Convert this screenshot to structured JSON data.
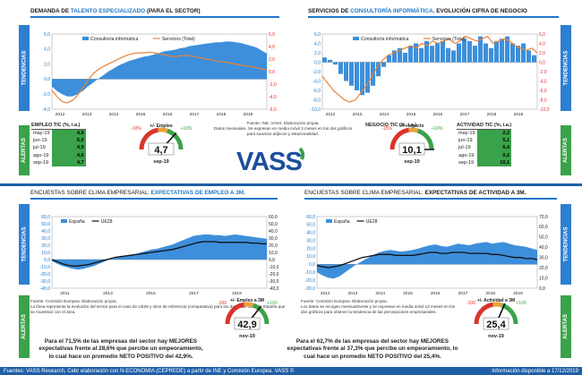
{
  "panels": {
    "tl": {
      "title_a": "DEMANDA DE ",
      "title_hl": "TALENTO ESPECIALIZADO",
      "title_b": " (PARA EL SECTOR)"
    },
    "tr": {
      "title_a": "SERVICIOS DE ",
      "title_hl": "CONSULTORÍA INFORMÁTICA",
      "title_b": ". EVOLUCIÓN CIFRA DE NEGOCIO"
    },
    "bl": {
      "title_a": "ENCUESTAS SOBRE CLIMA EMPRESARIAL: ",
      "title_hl": "EXPECTATIVAS DE EMPLEO A 3M."
    },
    "br": {
      "title_a": "ENCUESTAS SOBRE CLIMA EMPRESARIAL: ",
      "title_hl": "EXPECTATIVAS DE ACTIVIDAD A 3M."
    }
  },
  "tabs": {
    "tendencias": "TENDENCIAS",
    "alertas": "ALERTAS"
  },
  "notes": {
    "top_center": "Fuente: INE, VASS. Elaboración propia.\nDatos mensuales. Se expresan en media móvil 3 meses  en los dos gráficos para suavizar atípicos y estacionalidad.",
    "bl": "Fuente: Comisión Europea. Elaboración propia.\nLa línea representa la evolución del sector para el caso de UE28 y sirve de referencia (comparativa) para los datos del caso de España que se muestran con el área.",
    "br": "Fuente: Comisión Europea. Elaboración propia.\nLos datos se recogen mensualmente y se expresan en media móvil 12 meses  en los dos gráficos para obtener la tendencia de las percepciones empresariales."
  },
  "logo": {
    "text": "VASS"
  },
  "alerts": {
    "empleo": {
      "header": "EMPLEO TIC (%, i.a.)",
      "rows": [
        {
          "label": "may-19",
          "value": "4,9"
        },
        {
          "label": "jun-19",
          "value": "5,0"
        },
        {
          "label": "jul-19",
          "value": "4,9"
        },
        {
          "label": "ago-19",
          "value": "4,6"
        },
        {
          "label": "sep-19",
          "value": "4,7"
        }
      ],
      "gauge": {
        "min_label": "-10%",
        "max_label": "+10%",
        "caption": "+/- Empleo",
        "value": "4,7",
        "period": "sep-19",
        "fraction": 0.735
      }
    },
    "negocio": {
      "header": "NEGOCIO TIC (%, i.a.)",
      "gauge": {
        "min_label": "-15%",
        "max_label": "+10%",
        "caption": "+/- negocio",
        "value": "10,1",
        "period": "sep-19",
        "fraction": 1.0
      }
    },
    "actividad": {
      "header": "ACTIVIDAD TIC (%, i.a.)",
      "rows": [
        {
          "label": "may-19",
          "value": "2,2"
        },
        {
          "label": "jun-19",
          "value": "5,1"
        },
        {
          "label": "jul-19",
          "value": "6,4"
        },
        {
          "label": "ago-19",
          "value": "0,2"
        },
        {
          "label": "sep-19",
          "value": "10,1"
        }
      ]
    },
    "exp_empleo": {
      "gauge": {
        "min_label": "-100",
        "max_label": "+100",
        "caption": "+/- Empleo a 3M",
        "value": "42,9",
        "period": "nov-19",
        "fraction": 0.71
      },
      "para_a": "Para el 71,5% de las empresas del sector hay MEJORES expectativas frente al 28,6% que percibe un empeoramiento, lo cual hace un promedio NETO POSITIVO del 42,9%."
    },
    "exp_actividad": {
      "gauge": {
        "min_label": "-100",
        "max_label": "+100",
        "caption": "+/- Actividad a 3M",
        "value": "25,4",
        "period": "nov-19",
        "fraction": 0.63
      },
      "para_a": "Para el 62,7% de las empresas del sector hay MEJORES expectativas frente al 37,3% que percibe un empeoramiento, lo cual hace un promedio NETO POSITIVO del 25,4%."
    }
  },
  "footer": {
    "left": "Fuentes: VASS Research, Cebr elaboración con N-ECONOMIA (CEPREDE) a partir de INE y Comisión Europea. VASS ©",
    "right": "Información disponible a 17/12/2019"
  },
  "colors": {
    "accent": "#1f78c8",
    "area": "#3d8fdb",
    "orange": "#e8833a",
    "green": "#3aa24a",
    "red": "#d9342b"
  },
  "chart_data": [
    {
      "type": "area",
      "legend": [
        "Consultoría informática",
        "Servicios (Total)"
      ],
      "x_ticks": [
        "2012",
        "2013",
        "2014",
        "2015",
        "2016",
        "2017",
        "2018",
        "2019"
      ],
      "ylim_left": [
        -4,
        6
      ],
      "yticks_left": [
        "-4,0",
        "-2,0",
        "0,0",
        "2,0",
        "4,0",
        "6,0"
      ],
      "ylim_right": [
        -6,
        6
      ],
      "yticks_right": [
        "-6,0",
        "-4,0",
        "-2,0",
        "0,0",
        "2,0",
        "4,0",
        "6,0"
      ],
      "series": [
        {
          "name": "Consultoría informática",
          "axis": "left",
          "values": [
            -1.0,
            -1.6,
            -2.0,
            -2.3,
            -2.3,
            -2.0,
            -1.6,
            -1.0,
            -0.5,
            0.0,
            0.5,
            1.0,
            1.4,
            1.8,
            2.1,
            2.4,
            2.6,
            2.8,
            3.0,
            3.1,
            3.3,
            3.5,
            3.7,
            3.8,
            3.9,
            4.1,
            4.2,
            4.4,
            4.5,
            4.6,
            4.7,
            4.8,
            4.9,
            4.9,
            5.0,
            5.0,
            4.9,
            4.8,
            4.6,
            4.4,
            4.2,
            3.8,
            3.4
          ]
        },
        {
          "name": "Servicios (Total)",
          "axis": "right",
          "values": [
            -3.0,
            -4.0,
            -4.8,
            -5.0,
            -4.6,
            -3.8,
            -2.6,
            -1.4,
            -0.4,
            0.3,
            0.8,
            1.2,
            1.6,
            2.0,
            2.4,
            2.7,
            2.9,
            3.0,
            3.0,
            3.1,
            3.0,
            2.8,
            2.7,
            2.5,
            2.4,
            2.5,
            2.6,
            2.5,
            2.4,
            2.2,
            2.0,
            1.9,
            1.7,
            1.6,
            1.5,
            1.3,
            1.2,
            1.0,
            0.9,
            0.8,
            0.6,
            0.4,
            0.3
          ]
        }
      ]
    },
    {
      "type": "bar",
      "legend": [
        "Consultoría informática",
        "Servicios (Total)"
      ],
      "x_ticks": [
        "2012",
        "2013",
        "2014",
        "2015",
        "2016",
        "2017",
        "2018",
        "2019"
      ],
      "ylim_left": [
        -10,
        6
      ],
      "yticks_left": [
        "-10,0",
        "-8,0",
        "-6,0",
        "-4,0",
        "-2,0",
        "0,0",
        "2,0",
        "4,0",
        "6,0"
      ],
      "ylim_right": [
        -10,
        6
      ],
      "yticks_right": [
        "-10,0",
        "-8,0",
        "-6,0",
        "-4,0",
        "-2,0",
        "0,0",
        "2,0",
        "4,0",
        "6,0"
      ],
      "series": [
        {
          "name": "Consultoría informática",
          "axis": "left",
          "values": [
            1.0,
            0.5,
            -0.5,
            -2.5,
            -4.0,
            -5.0,
            -6.0,
            -7.0,
            -6.5,
            -5.0,
            -3.0,
            -1.0,
            1.5,
            2.5,
            3.0,
            2.0,
            3.5,
            4.0,
            3.0,
            4.5,
            3.5,
            4.0,
            4.5,
            3.0,
            2.5,
            4.0,
            5.0,
            4.5,
            3.5,
            5.5,
            4.0,
            3.0,
            4.5,
            5.0,
            5.5,
            4.0,
            3.5,
            4.0,
            2.5,
            1.5
          ]
        },
        {
          "name": "Servicios (Total)",
          "axis": "right",
          "values": [
            -3.0,
            -4.5,
            -6.0,
            -7.0,
            -8.0,
            -8.5,
            -8.0,
            -6.5,
            -5.0,
            -3.0,
            -1.0,
            0.5,
            1.5,
            2.0,
            2.5,
            3.0,
            3.5,
            3.0,
            4.0,
            3.5,
            4.5,
            4.0,
            4.5,
            5.0,
            4.0,
            4.5,
            5.5,
            5.0,
            4.5,
            5.0,
            5.5,
            4.0,
            4.5,
            5.0,
            4.5,
            3.5,
            3.0,
            2.5,
            3.0,
            2.0
          ]
        }
      ]
    },
    {
      "type": "area",
      "legend": [
        "España",
        "UE28"
      ],
      "x_ticks": [
        "2011",
        "2013",
        "2015",
        "2017",
        "2019"
      ],
      "ylim_left": [
        -40,
        60
      ],
      "yticks_left": [
        "-40,0",
        "-30,0",
        "-20,0",
        "-10,0",
        "0,0",
        "10,0",
        "20,0",
        "30,0",
        "40,0",
        "50,0",
        "60,0"
      ],
      "ylim_right": [
        -40,
        60
      ],
      "yticks_right": [
        "-40,0",
        "-30,0",
        "-20,0",
        "-10,0",
        "0,0",
        "10,0",
        "20,0",
        "30,0",
        "40,0",
        "50,0",
        "60,0"
      ],
      "series": [
        {
          "name": "España",
          "axis": "left",
          "values": [
            -2,
            -6,
            -9,
            -11,
            -13,
            -14,
            -13,
            -11,
            -9,
            -6,
            -3,
            0,
            2,
            4,
            5,
            6,
            8,
            10,
            12,
            14,
            15,
            17,
            19,
            21,
            24,
            27,
            30,
            33,
            34,
            35,
            35,
            34,
            34,
            33,
            34,
            35,
            34,
            33,
            32,
            31,
            30,
            29
          ]
        },
        {
          "name": "UE28",
          "axis": "right",
          "values": [
            0,
            -3,
            -6,
            -8,
            -9,
            -9,
            -8,
            -7,
            -5,
            -3,
            -1,
            1,
            3,
            4,
            5,
            6,
            7,
            8,
            9,
            10,
            11,
            12,
            13,
            14,
            16,
            18,
            20,
            22,
            24,
            25,
            25,
            25,
            24,
            24,
            24,
            24,
            24,
            24,
            23,
            23,
            22,
            22
          ]
        }
      ]
    },
    {
      "type": "area",
      "legend": [
        "España",
        "UE28"
      ],
      "x_ticks": [
        "2012",
        "2013",
        "2014",
        "2015",
        "2016",
        "2017",
        "2018",
        "2019"
      ],
      "ylim_left": [
        -30,
        60
      ],
      "yticks_left": [
        "-30,0",
        "-20,0",
        "-10,0",
        "0,0",
        "10,0",
        "20,0",
        "30,0",
        "40,0",
        "50,0",
        "60,0"
      ],
      "ylim_right": [
        0,
        70
      ],
      "yticks_right": [
        "0,0",
        "10,0",
        "20,0",
        "30,0",
        "40,0",
        "50,0",
        "60,0",
        "70,0"
      ],
      "series": [
        {
          "name": "España",
          "axis": "left",
          "values": [
            -10,
            -14,
            -17,
            -18,
            -15,
            -10,
            -5,
            0,
            4,
            8,
            12,
            15,
            17,
            18,
            17,
            16,
            17,
            18,
            20,
            22,
            24,
            25,
            23,
            22,
            24,
            26,
            25,
            24,
            26,
            27,
            28,
            26,
            27,
            28,
            26,
            24,
            23,
            22,
            20,
            18
          ]
        },
        {
          "name": "UE28",
          "axis": "right",
          "values": [
            22,
            21,
            20,
            21,
            22,
            24,
            26,
            28,
            30,
            31,
            32,
            33,
            33,
            33,
            32,
            32,
            32,
            32,
            33,
            34,
            35,
            35,
            34,
            34,
            35,
            35,
            35,
            34,
            34,
            34,
            34,
            33,
            33,
            32,
            31,
            30,
            30,
            29,
            29,
            28
          ]
        }
      ]
    }
  ]
}
